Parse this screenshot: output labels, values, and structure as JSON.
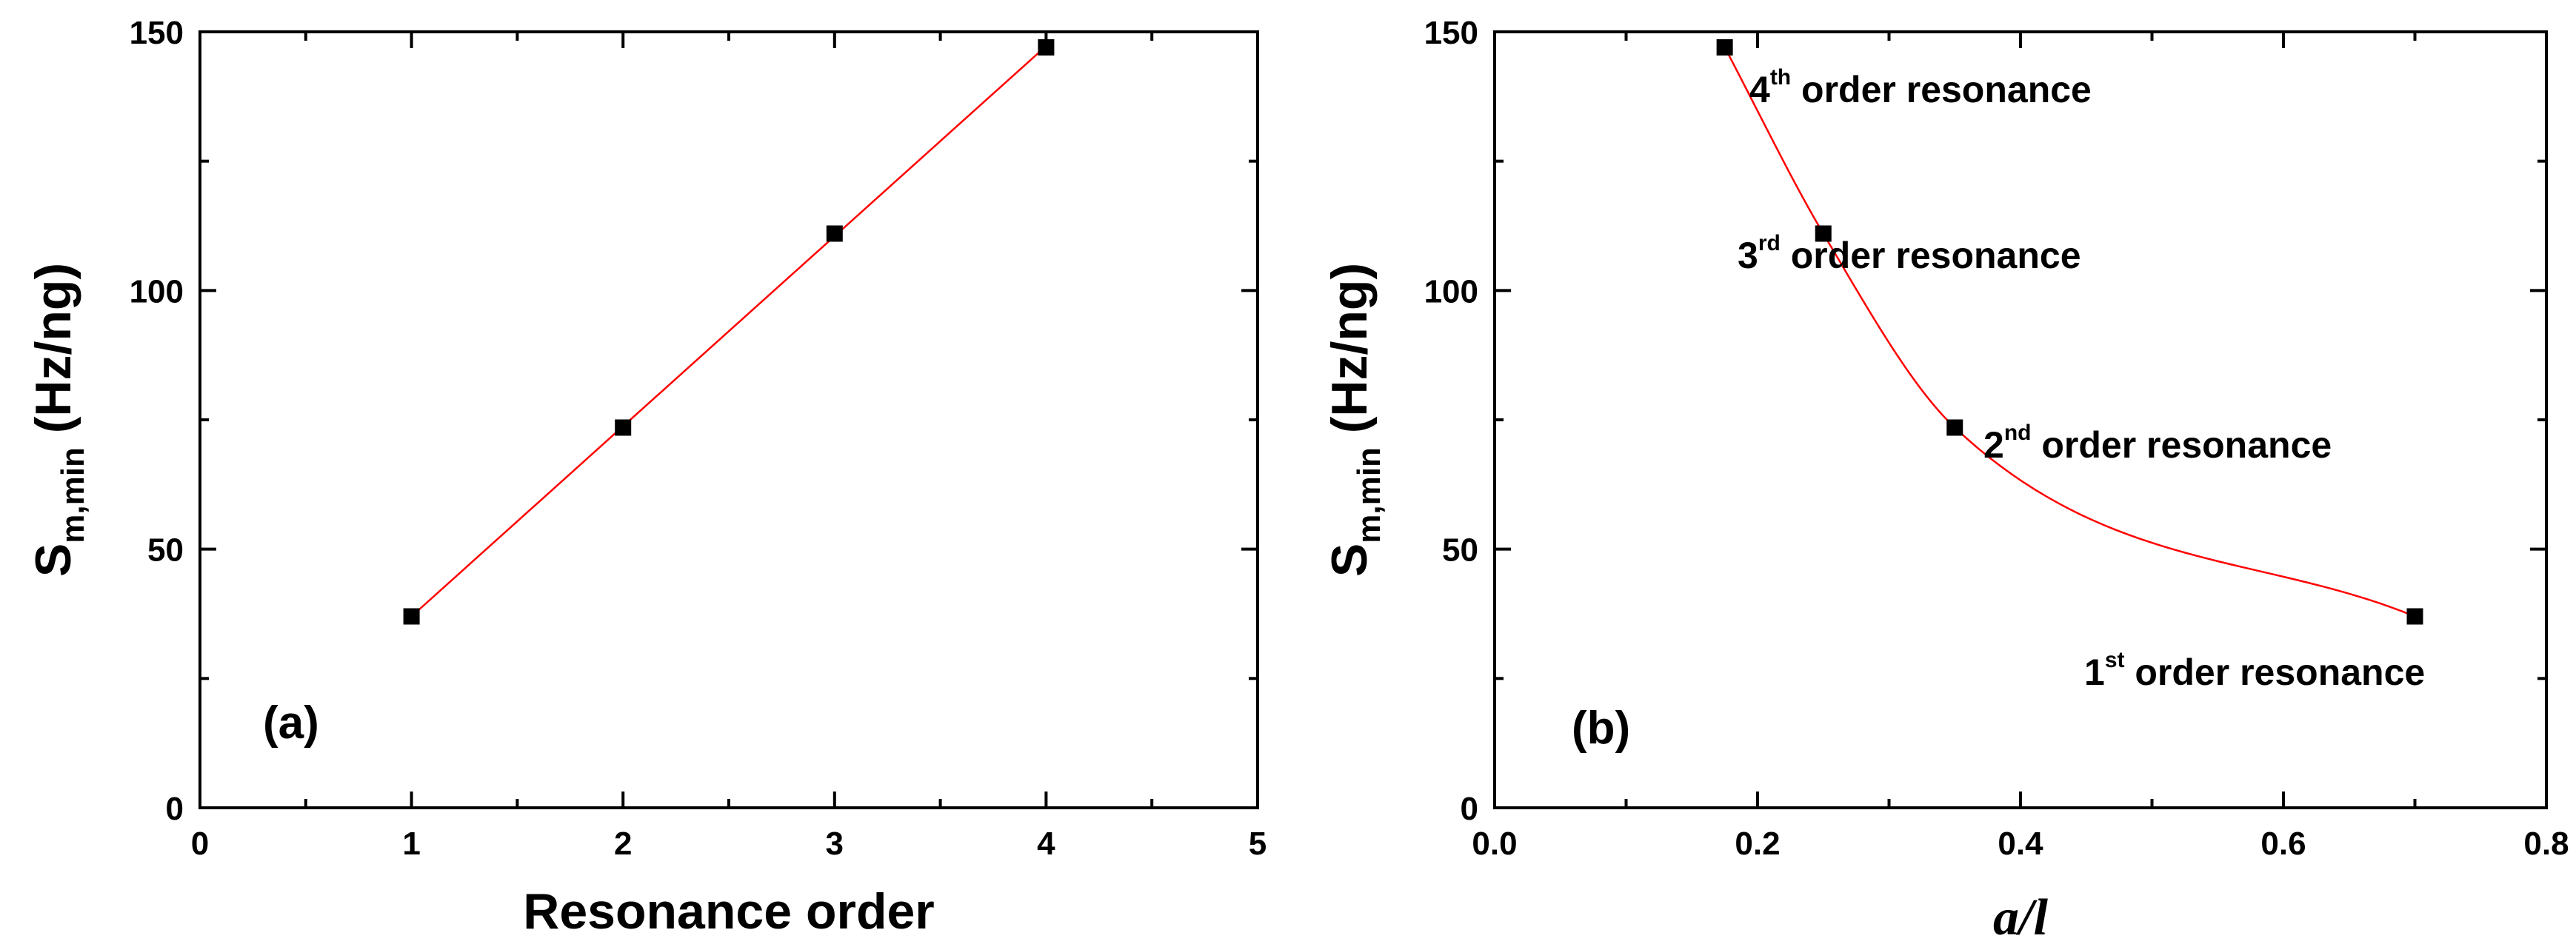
{
  "chart_data": [
    {
      "type": "scatter",
      "panel_label": "(a)",
      "xlabel": "Resonance order",
      "ylabel_main": "S",
      "ylabel_sub": "m,min",
      "ylabel_rest": " (Hz/ng)",
      "xlim": [
        0,
        5
      ],
      "ylim": [
        0,
        150
      ],
      "xticks": [
        0,
        1,
        2,
        3,
        4,
        5
      ],
      "yticks": [
        0,
        50,
        100,
        150
      ],
      "xminor": [
        0.5,
        1.5,
        2.5,
        3.5,
        4.5
      ],
      "yminor": [
        25,
        75,
        125
      ],
      "grid": false,
      "series": [
        {
          "x": [
            1,
            2,
            3,
            4
          ],
          "y": [
            37,
            73.5,
            111,
            147
          ],
          "marker": "square",
          "color": "#000000",
          "fit": {
            "type": "linear",
            "color": "#ff0000"
          }
        }
      ]
    },
    {
      "type": "scatter",
      "panel_label": "(b)",
      "xlabel": "a/l",
      "ylabel_main": "S",
      "ylabel_sub": "m,min",
      "ylabel_rest": " (Hz/ng)",
      "xlim": [
        0.0,
        0.8
      ],
      "ylim": [
        0,
        150
      ],
      "xticks": [
        0.0,
        0.2,
        0.4,
        0.6,
        0.8
      ],
      "xtick_labels": [
        "0.0",
        "0.2",
        "0.4",
        "0.6",
        "0.8"
      ],
      "yticks": [
        0,
        50,
        100,
        150
      ],
      "xminor": [
        0.1,
        0.3,
        0.5,
        0.7
      ],
      "yminor": [
        25,
        75,
        125
      ],
      "grid": false,
      "series": [
        {
          "x": [
            0.175,
            0.25,
            0.35,
            0.7
          ],
          "y": [
            147,
            111,
            73.5,
            37
          ],
          "marker": "square",
          "color": "#000000",
          "fit": {
            "type": "smooth",
            "color": "#ff0000"
          }
        }
      ],
      "annotations": [
        {
          "num": "4",
          "sup": "th",
          "rest": " order resonance"
        },
        {
          "num": "3",
          "sup": "rd",
          "rest": " order resonance"
        },
        {
          "num": "2",
          "sup": "nd",
          "rest": " order resonance"
        },
        {
          "num": "1",
          "sup": "st",
          "rest": " order resonance"
        }
      ]
    }
  ]
}
